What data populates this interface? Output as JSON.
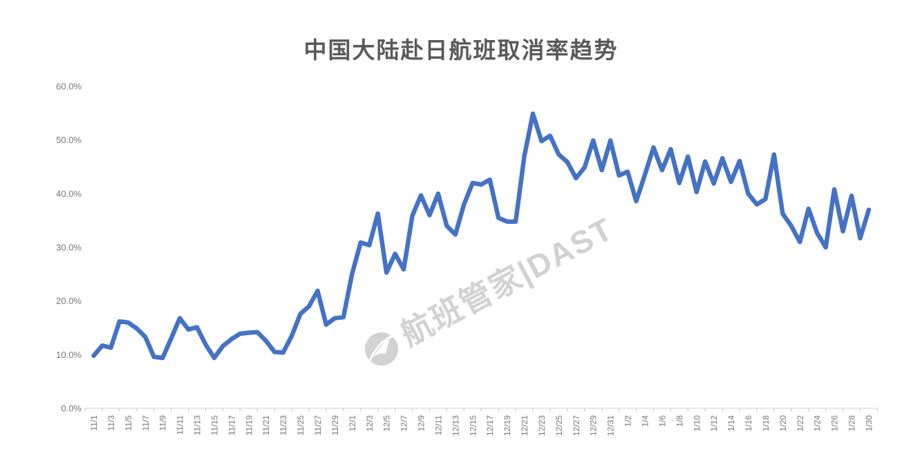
{
  "title": "中国大陆赴日航班取消率趋势",
  "watermark": {
    "logo_icon": "flight-manager-globe-plane-logo",
    "text": "航班管家|DAST"
  },
  "colors": {
    "line": "#4472C4",
    "title": "#595959",
    "axis_text": "#767676",
    "axis_line": "#D9D9D9",
    "tick": "#C9C9C9",
    "watermark": "#C7C7C7"
  },
  "chart_data": {
    "type": "line",
    "title": "中国大陆赴日航班取消率趋势",
    "ylim": [
      0,
      60
    ],
    "y_unit": "%",
    "grid": false,
    "legend": false,
    "x_label_every_n": 2,
    "y_ticks": [
      "0.0%",
      "10.0%",
      "20.0%",
      "30.0%",
      "40.0%",
      "50.0%",
      "60.0%"
    ],
    "x": [
      "11/1",
      "11/2",
      "11/3",
      "11/4",
      "11/5",
      "11/6",
      "11/7",
      "11/8",
      "11/9",
      "11/10",
      "11/11",
      "11/12",
      "11/13",
      "11/14",
      "11/15",
      "11/16",
      "11/17",
      "11/18",
      "11/19",
      "11/20",
      "11/21",
      "11/22",
      "11/23",
      "11/24",
      "11/25",
      "11/26",
      "11/27",
      "11/28",
      "11/29",
      "11/30",
      "12/1",
      "12/2",
      "12/3",
      "12/4",
      "12/5",
      "12/6",
      "12/7",
      "12/8",
      "12/9",
      "12/10",
      "12/11",
      "12/12",
      "12/13",
      "12/14",
      "12/15",
      "12/16",
      "12/17",
      "12/18",
      "12/19",
      "12/20",
      "12/21",
      "12/22",
      "12/23",
      "12/24",
      "12/25",
      "12/26",
      "12/27",
      "12/28",
      "12/29",
      "12/30",
      "12/31",
      "1/1",
      "1/2",
      "1/3",
      "1/4",
      "1/5",
      "1/6",
      "1/7",
      "1/8",
      "1/9",
      "1/10",
      "1/11",
      "1/12",
      "1/13",
      "1/14",
      "1/15",
      "1/16",
      "1/17",
      "1/18",
      "1/19",
      "1/20",
      "1/21",
      "1/22",
      "1/23",
      "1/24",
      "1/25",
      "1/26",
      "1/27",
      "1/28",
      "1/29",
      "1/30"
    ],
    "values": [
      9.8,
      11.7,
      11.3,
      16.2,
      16.0,
      14.9,
      13.3,
      9.6,
      9.4,
      13.0,
      16.8,
      14.7,
      15.1,
      11.9,
      9.4,
      11.6,
      12.9,
      13.9,
      14.1,
      14.2,
      12.6,
      10.5,
      10.4,
      13.5,
      17.6,
      19.0,
      21.9,
      15.6,
      16.8,
      17.0,
      25.0,
      30.9,
      30.4,
      36.3,
      25.3,
      28.8,
      25.9,
      35.9,
      39.7,
      36.0,
      40.0,
      34.0,
      32.4,
      38.0,
      42.0,
      41.7,
      42.6,
      35.5,
      34.8,
      34.8,
      47.0,
      54.9,
      49.8,
      50.8,
      47.3,
      45.9,
      42.9,
      44.9,
      49.9,
      44.4,
      49.9,
      43.4,
      44.1,
      38.6,
      43.5,
      48.6,
      44.4,
      48.3,
      42.0,
      46.9,
      40.3,
      46.0,
      41.9,
      46.6,
      42.2,
      46.1,
      40.0,
      38.0,
      39.0,
      47.3,
      36.3,
      34.0,
      31.0,
      37.2,
      32.7,
      30.0,
      40.8,
      33.0,
      39.6,
      31.7,
      37.0
    ]
  }
}
